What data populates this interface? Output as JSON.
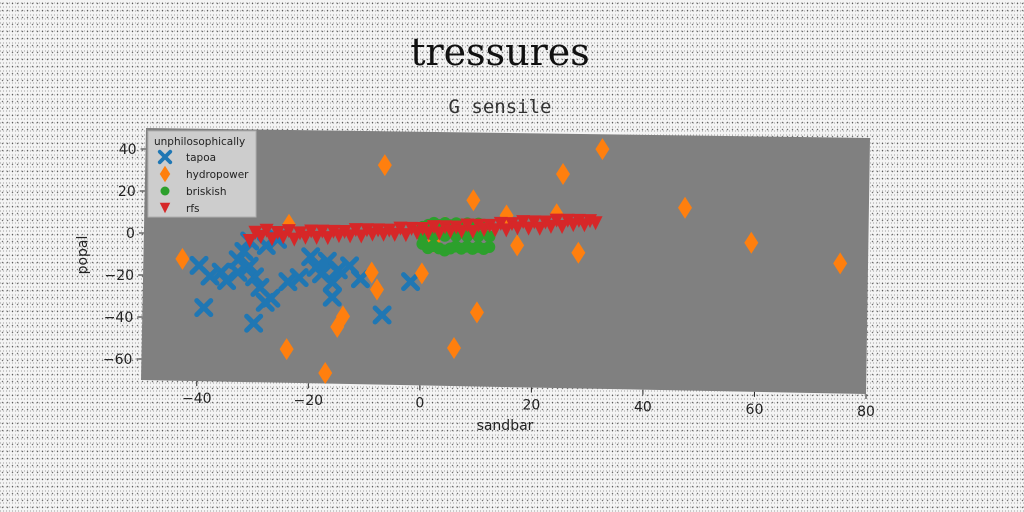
{
  "chart_data": {
    "type": "scatter",
    "title": "tressures",
    "subtitle": "G sensile",
    "xlabel": "sandbar",
    "ylabel": "popal",
    "xlim": [
      -50,
      80
    ],
    "ylim": [
      -70,
      50
    ],
    "xticks": [
      -40,
      -20,
      0,
      20,
      40,
      60,
      80
    ],
    "yticks": [
      -60,
      -40,
      -20,
      0,
      20,
      40
    ],
    "grid": false,
    "plot_background": "#808080",
    "legend": {
      "title": "unphilosophically",
      "placement": "top-left"
    },
    "series": [
      {
        "name": "tapoa",
        "marker": "x",
        "color": "#1f77b4",
        "points": [
          [
            -40,
            -15
          ],
          [
            -38,
            -20
          ],
          [
            -36,
            -18
          ],
          [
            -35,
            -22
          ],
          [
            -33,
            -12
          ],
          [
            -32,
            -8
          ],
          [
            -31,
            -15
          ],
          [
            -30,
            -20
          ],
          [
            -29,
            -25
          ],
          [
            -33,
            -18
          ],
          [
            -31,
            -3
          ],
          [
            -28,
            -5
          ],
          [
            -26,
            -2
          ],
          [
            -24,
            -22
          ],
          [
            -22,
            -20
          ],
          [
            -27,
            -30
          ],
          [
            -28,
            -32
          ],
          [
            -30,
            -42
          ],
          [
            -39,
            -35
          ],
          [
            -20,
            -10
          ],
          [
            -19,
            -15
          ],
          [
            -17,
            -12
          ],
          [
            -18,
            -18
          ],
          [
            -16,
            -22
          ],
          [
            -15,
            -16
          ],
          [
            -13,
            -14
          ],
          [
            -11,
            -20
          ],
          [
            -16,
            -29
          ],
          [
            -7,
            -37
          ],
          [
            -2,
            -21
          ]
        ]
      },
      {
        "name": "hydropower",
        "marker": "d",
        "color": "#ff7f0e",
        "points": [
          [
            -43,
            -12
          ],
          [
            -24,
            5
          ],
          [
            -24,
            -54
          ],
          [
            -17,
            -65
          ],
          [
            -15,
            -43
          ],
          [
            -14,
            -38
          ],
          [
            -9,
            -17
          ],
          [
            -8,
            -25
          ],
          [
            -7,
            34
          ],
          [
            0,
            -17
          ],
          [
            2,
            -2
          ],
          [
            4,
            5
          ],
          [
            6,
            -52
          ],
          [
            9,
            18
          ],
          [
            10,
            -35
          ],
          [
            15,
            11
          ],
          [
            17,
            -3
          ],
          [
            24,
            12
          ],
          [
            25,
            31
          ],
          [
            28,
            -6
          ],
          [
            32,
            43
          ],
          [
            47,
            16
          ],
          [
            59,
            0
          ],
          [
            75,
            -9
          ]
        ]
      },
      {
        "name": "briskish",
        "marker": "o",
        "color": "#2ca02c",
        "points": [
          [
            0,
            -3
          ],
          [
            0,
            5
          ],
          [
            1,
            -5
          ],
          [
            1,
            6
          ],
          [
            2,
            -4
          ],
          [
            2,
            7
          ],
          [
            3,
            -5
          ],
          [
            3,
            6
          ],
          [
            4,
            -6
          ],
          [
            4,
            7
          ],
          [
            5,
            -5
          ],
          [
            5,
            6
          ],
          [
            6,
            -4
          ],
          [
            6,
            7
          ],
          [
            7,
            -5
          ],
          [
            7,
            6
          ],
          [
            8,
            -4
          ],
          [
            8,
            7
          ],
          [
            9,
            -5
          ],
          [
            9,
            6
          ],
          [
            10,
            -4
          ],
          [
            10,
            7
          ],
          [
            11,
            -5
          ],
          [
            11,
            6
          ],
          [
            12,
            -4
          ],
          [
            0,
            1
          ],
          [
            2,
            1
          ],
          [
            4,
            1
          ],
          [
            6,
            1
          ],
          [
            8,
            1
          ],
          [
            10,
            1
          ],
          [
            12,
            1
          ]
        ]
      },
      {
        "name": "rfs",
        "marker": "v",
        "color": "#d62728",
        "points": [
          [
            -31,
            -3
          ],
          [
            -30,
            1
          ],
          [
            -29,
            -1
          ],
          [
            -28,
            2
          ],
          [
            -27,
            -2
          ],
          [
            -26,
            1
          ],
          [
            -25,
            -1
          ],
          [
            -24,
            2
          ],
          [
            -23,
            -2
          ],
          [
            -22,
            1
          ],
          [
            -21,
            -1
          ],
          [
            -20,
            2
          ],
          [
            -19,
            -1
          ],
          [
            -18,
            2
          ],
          [
            -17,
            -1
          ],
          [
            -16,
            2
          ],
          [
            -15,
            0
          ],
          [
            -14,
            2
          ],
          [
            -13,
            0
          ],
          [
            -12,
            3
          ],
          [
            -11,
            0
          ],
          [
            -10,
            3
          ],
          [
            -9,
            1
          ],
          [
            -8,
            3
          ],
          [
            -7,
            1
          ],
          [
            -6,
            3
          ],
          [
            -5,
            1
          ],
          [
            -4,
            4
          ],
          [
            -3,
            1
          ],
          [
            -2,
            4
          ],
          [
            -1,
            2
          ],
          [
            0,
            4
          ],
          [
            1,
            2
          ],
          [
            2,
            5
          ],
          [
            3,
            2
          ],
          [
            4,
            5
          ],
          [
            5,
            3
          ],
          [
            6,
            5
          ],
          [
            7,
            3
          ],
          [
            8,
            6
          ],
          [
            9,
            3
          ],
          [
            10,
            6
          ],
          [
            11,
            4
          ],
          [
            12,
            6
          ],
          [
            13,
            4
          ],
          [
            14,
            7
          ],
          [
            15,
            4
          ],
          [
            16,
            7
          ],
          [
            17,
            5
          ],
          [
            18,
            8
          ],
          [
            19,
            5
          ],
          [
            20,
            8
          ],
          [
            21,
            5
          ],
          [
            22,
            8
          ],
          [
            23,
            6
          ],
          [
            24,
            9
          ],
          [
            25,
            6
          ],
          [
            26,
            9
          ],
          [
            27,
            7
          ],
          [
            28,
            9
          ],
          [
            29,
            7
          ],
          [
            30,
            9
          ],
          [
            31,
            8
          ]
        ]
      }
    ]
  }
}
